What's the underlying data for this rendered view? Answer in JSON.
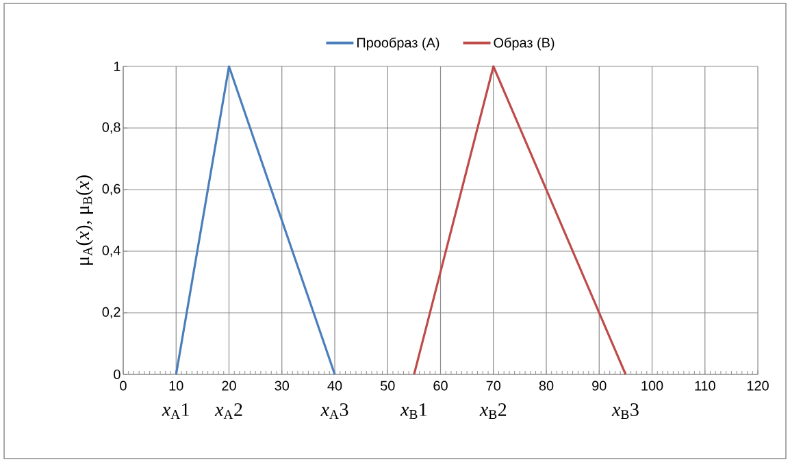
{
  "chart_data": {
    "type": "line",
    "series": [
      {
        "name": "Прообраз (A)",
        "color": "#4a7ebb",
        "x": [
          10,
          20,
          40
        ],
        "values": [
          0,
          1,
          0
        ]
      },
      {
        "name": "Образ (B)",
        "color": "#be4b48",
        "x": [
          55,
          70,
          95
        ],
        "values": [
          0,
          1,
          0
        ]
      }
    ],
    "ylabel": "μ$_{A}$(*x*), μ$_{B}$(*x*)",
    "xlim": [
      0,
      120
    ],
    "xticks": [
      0,
      10,
      20,
      30,
      40,
      50,
      60,
      70,
      80,
      90,
      100,
      110,
      120
    ],
    "ylim": [
      0,
      1
    ],
    "yticks": [
      0,
      {
        "value": 0.2,
        "label": "0,2"
      },
      {
        "value": 0.4,
        "label": "0,4"
      },
      {
        "value": 0.6,
        "label": "0,6"
      },
      {
        "value": 0.8,
        "label": "0,8"
      },
      1
    ],
    "grid": true,
    "legend": "top",
    "marker": "none",
    "line_style": "solid",
    "annotations": [
      "*x*$_{A}$1",
      "*x*$_{A}$2",
      "*x*$_{A}$3",
      "*x*$_{B}$1",
      "*x*$_{B}$2",
      "*x*$_{B}$3"
    ]
  }
}
